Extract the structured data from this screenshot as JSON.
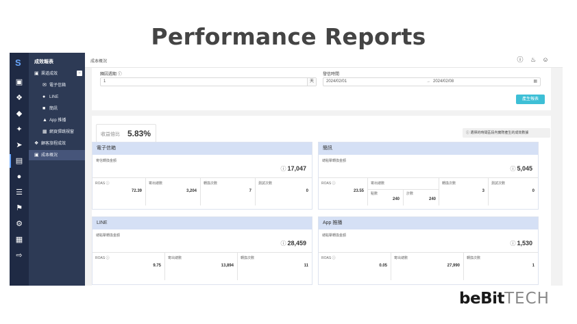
{
  "slide": {
    "title": "Performance Reports"
  },
  "brand": {
    "name_a": "beBit",
    "name_b": "TECH"
  },
  "rail": {
    "logo": "S",
    "icons": [
      "briefcase-icon",
      "share-icon",
      "tag-icon",
      "magic-icon",
      "rocket-icon",
      "bar-chart-icon",
      "user-icon",
      "database-icon",
      "flag-icon",
      "gear-icon",
      "book-icon",
      "export-icon"
    ]
  },
  "nav": {
    "title": "成效報表",
    "group": "渠道成效",
    "items": [
      {
        "label": "電子信箱",
        "icon": "envelope-icon"
      },
      {
        "label": "LINE",
        "icon": "line-icon"
      },
      {
        "label": "簡訊",
        "icon": "chat-icon"
      },
      {
        "label": "App 推播",
        "icon": "bell-icon"
      },
      {
        "label": "網頁彈跳視窗",
        "icon": "window-icon"
      }
    ],
    "customer_journey": "顧客旅程成效",
    "cost_overview": "成本概況"
  },
  "topbar": {
    "breadcrumb": "成本概況"
  },
  "filter": {
    "window_label": "歸因週期",
    "window_value": "1",
    "window_unit": "天",
    "date_label": "發信時間",
    "date_from": "2024/02/01",
    "date_to": "2024/02/08",
    "generate_label": "產生報表"
  },
  "report": {
    "ratio_label": "收益倍比",
    "ratio_value": "5.83%",
    "hint": "選擇的時間區段內實際產生的成效數據"
  },
  "cards": {
    "email": {
      "title": "電子信箱",
      "amount_label": "寄信轉換金額",
      "amount": "17,047",
      "m1_label": "ROAS",
      "m1_value": "72.39",
      "m2_label": "寄出總數",
      "m2_value": "3,204",
      "m3_label": "轉換次數",
      "m3_value": "7",
      "m4_label": "測試次數",
      "m4_value": "0"
    },
    "sms": {
      "title": "簡訊",
      "amount_label": "總點擊轉換金額",
      "amount": "5,045",
      "m1_label": "ROAS",
      "m1_value": "23.55",
      "m2_label": "寄出總數",
      "m2_sub1_label": "點數",
      "m2_sub1_value": "240",
      "m2_sub2_label": "計數",
      "m2_sub2_value": "240",
      "m3_label": "轉換次數",
      "m3_value": "3",
      "m4_label": "測試次數",
      "m4_value": "0"
    },
    "line": {
      "title": "LINE",
      "amount_label": "總點擊轉換金額",
      "amount": "28,459",
      "m1_label": "ROAS",
      "m1_value": "9.75",
      "m2_label": "寄出總數",
      "m2_value": "13,894",
      "m3_label": "轉換次數",
      "m3_value": "11"
    },
    "app": {
      "title": "App 推播",
      "amount_label": "總點擊轉換金額",
      "amount": "1,530",
      "m1_label": "ROAS",
      "m1_value": "0.05",
      "m2_label": "寄出總數",
      "m2_value": "27,990",
      "m3_label": "轉換次數",
      "m3_value": "1"
    }
  }
}
